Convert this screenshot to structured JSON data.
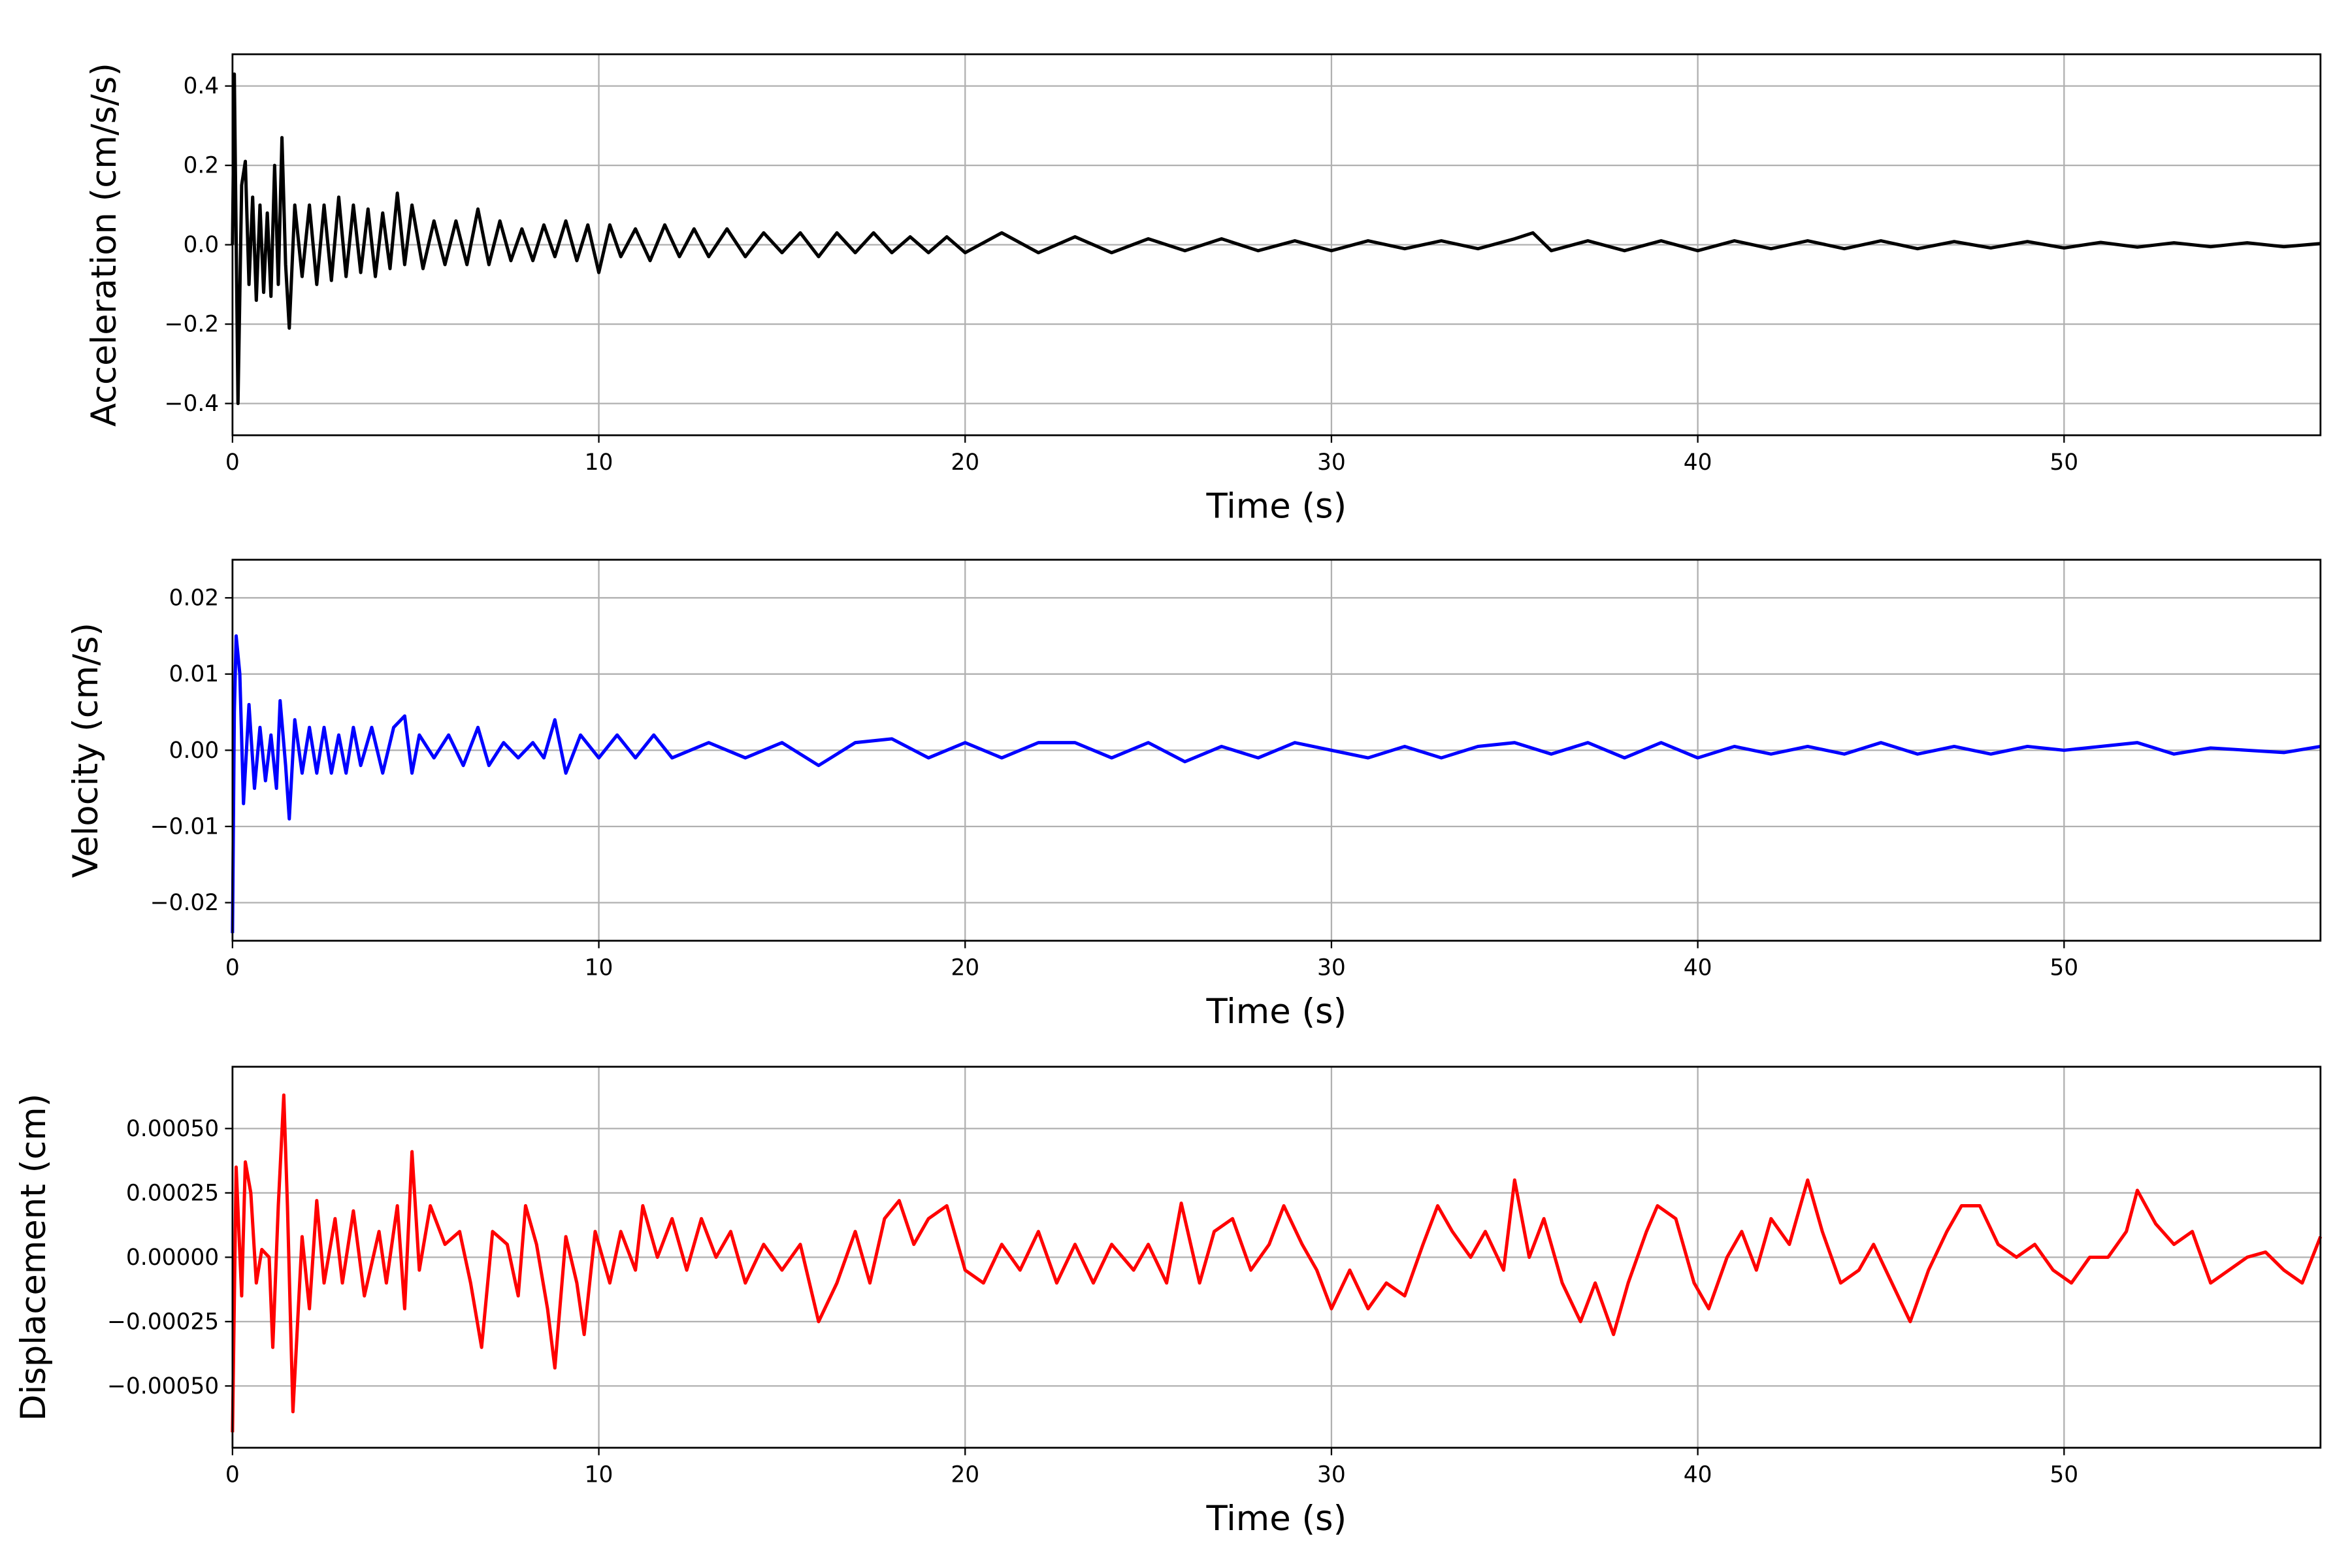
{
  "chart_data": [
    {
      "type": "line",
      "xlabel": "Time (s)",
      "ylabel": "Acceleration (cm/s/s)",
      "color": "#000000",
      "grid": true,
      "xlim": [
        0,
        57
      ],
      "xticks": [
        0,
        10,
        20,
        30,
        40,
        50
      ],
      "ylim": [
        -0.48,
        0.48
      ],
      "yticks": [
        {
          "value": -0.4,
          "label": "−0.4"
        },
        {
          "value": -0.2,
          "label": "−0.2"
        },
        {
          "value": 0,
          "label": "0.0"
        },
        0.2,
        0.4
      ],
      "x": [
        0,
        0.05,
        0.15,
        0.25,
        0.35,
        0.45,
        0.55,
        0.65,
        0.75,
        0.85,
        0.95,
        1.05,
        1.15,
        1.25,
        1.35,
        1.45,
        1.55,
        1.7,
        1.9,
        2.1,
        2.3,
        2.5,
        2.7,
        2.9,
        3.1,
        3.3,
        3.5,
        3.7,
        3.9,
        4.1,
        4.3,
        4.5,
        4.7,
        4.9,
        5.2,
        5.5,
        5.8,
        6.1,
        6.4,
        6.7,
        7,
        7.3,
        7.6,
        7.9,
        8.2,
        8.5,
        8.8,
        9.1,
        9.4,
        9.7,
        10,
        10.3,
        10.6,
        11,
        11.4,
        11.8,
        12.2,
        12.6,
        13,
        13.5,
        14,
        14.5,
        15,
        15.5,
        16,
        16.5,
        17,
        17.5,
        18,
        18.5,
        19,
        19.5,
        20,
        21,
        22,
        23,
        24,
        25,
        26,
        27,
        28,
        29,
        30,
        31,
        32,
        33,
        34,
        35,
        35.5,
        36,
        37,
        38,
        39,
        40,
        41,
        42,
        43,
        44,
        45,
        46,
        47,
        48,
        49,
        50,
        51,
        52,
        53,
        54,
        55,
        56,
        57
      ],
      "values": [
        0,
        0.43,
        -0.4,
        0.15,
        0.21,
        -0.1,
        0.12,
        -0.14,
        0.1,
        -0.12,
        0.08,
        -0.13,
        0.2,
        -0.1,
        0.27,
        -0.05,
        -0.21,
        0.1,
        -0.08,
        0.1,
        -0.1,
        0.1,
        -0.09,
        0.12,
        -0.08,
        0.1,
        -0.07,
        0.09,
        -0.08,
        0.08,
        -0.06,
        0.13,
        -0.05,
        0.1,
        -0.06,
        0.06,
        -0.05,
        0.06,
        -0.05,
        0.09,
        -0.05,
        0.06,
        -0.04,
        0.04,
        -0.04,
        0.05,
        -0.03,
        0.06,
        -0.04,
        0.05,
        -0.07,
        0.05,
        -0.03,
        0.04,
        -0.04,
        0.05,
        -0.03,
        0.04,
        -0.03,
        0.04,
        -0.03,
        0.03,
        -0.02,
        0.03,
        -0.03,
        0.03,
        -0.02,
        0.03,
        -0.02,
        0.02,
        -0.02,
        0.02,
        -0.02,
        0.03,
        -0.02,
        0.02,
        -0.02,
        0.015,
        -0.015,
        0.015,
        -0.015,
        0.01,
        -0.015,
        0.01,
        -0.01,
        0.01,
        -0.01,
        0.015,
        0.03,
        -0.015,
        0.01,
        -0.015,
        0.01,
        -0.015,
        0.01,
        -0.01,
        0.01,
        -0.01,
        0.01,
        -0.01,
        0.008,
        -0.008,
        0.008,
        -0.008,
        0.006,
        -0.006,
        0.005,
        -0.005,
        0.005,
        -0.005,
        0.003
      ]
    },
    {
      "type": "line",
      "xlabel": "Time (s)",
      "ylabel": "Velocity (cm/s)",
      "color": "#0000ff",
      "grid": true,
      "xlim": [
        0,
        57
      ],
      "xticks": [
        0,
        10,
        20,
        30,
        40,
        50
      ],
      "ylim": [
        -0.025,
        0.025
      ],
      "yticks": [
        {
          "value": -0.02,
          "label": "−0.02"
        },
        {
          "value": -0.01,
          "label": "−0.01"
        },
        {
          "value": 0,
          "label": "0.00"
        },
        0.01,
        0.02
      ],
      "x": [
        0,
        0.05,
        0.1,
        0.2,
        0.3,
        0.45,
        0.6,
        0.75,
        0.9,
        1.05,
        1.2,
        1.3,
        1.45,
        1.55,
        1.7,
        1.9,
        2.1,
        2.3,
        2.5,
        2.7,
        2.9,
        3.1,
        3.3,
        3.5,
        3.8,
        4.1,
        4.4,
        4.7,
        4.9,
        5.1,
        5.5,
        5.9,
        6.3,
        6.7,
        7,
        7.4,
        7.8,
        8.2,
        8.5,
        8.8,
        9.1,
        9.5,
        10,
        10.5,
        11,
        11.5,
        12,
        13,
        14,
        15,
        16,
        17,
        18,
        19,
        20,
        21,
        22,
        23,
        24,
        25,
        26,
        27,
        28,
        29,
        30,
        31,
        32,
        33,
        34,
        35,
        36,
        37,
        38,
        39,
        40,
        41,
        42,
        43,
        44,
        45,
        46,
        47,
        48,
        49,
        50,
        51,
        52,
        53,
        54,
        55,
        56,
        57
      ],
      "values": [
        -0.024,
        0.005,
        0.015,
        0.01,
        -0.007,
        0.006,
        -0.005,
        0.003,
        -0.004,
        0.002,
        -0.005,
        0.0065,
        -0.002,
        -0.009,
        0.004,
        -0.003,
        0.003,
        -0.003,
        0.003,
        -0.003,
        0.002,
        -0.003,
        0.003,
        -0.002,
        0.003,
        -0.003,
        0.003,
        0.0045,
        -0.003,
        0.002,
        -0.001,
        0.002,
        -0.002,
        0.003,
        -0.002,
        0.001,
        -0.001,
        0.001,
        -0.001,
        0.004,
        -0.003,
        0.002,
        -0.001,
        0.002,
        -0.001,
        0.002,
        -0.001,
        0.001,
        -0.001,
        0.001,
        -0.002,
        0.001,
        0.0015,
        -0.001,
        0.001,
        -0.001,
        0.001,
        0.001,
        -0.001,
        0.001,
        -0.0015,
        0.0005,
        -0.001,
        0.001,
        0,
        -0.001,
        0.0005,
        -0.001,
        0.0005,
        0.001,
        -0.0005,
        0.001,
        -0.001,
        0.001,
        -0.001,
        0.0005,
        -0.0005,
        0.0005,
        -0.0005,
        0.001,
        -0.0005,
        0.0005,
        -0.0005,
        0.0005,
        0,
        0.0005,
        0.001,
        -0.0005,
        0.0003,
        0,
        -0.0003,
        0.0005
      ]
    },
    {
      "type": "line",
      "xlabel": "Time (s)",
      "ylabel": "Displacement (cm)",
      "color": "#ff0000",
      "grid": true,
      "xlim": [
        0,
        57
      ],
      "xticks": [
        0,
        10,
        20,
        30,
        40,
        50
      ],
      "ylim": [
        -0.00074,
        0.00074
      ],
      "yticks": [
        {
          "value": -0.0005,
          "label": "−0.00050"
        },
        {
          "value": -0.00025,
          "label": "−0.00025"
        },
        {
          "value": 0,
          "label": "0.00000"
        },
        {
          "value": 0.00025,
          "label": "0.00025"
        },
        {
          "value": 0.0005,
          "label": "0.00050"
        }
      ],
      "x": [
        0,
        0.1,
        0.25,
        0.35,
        0.5,
        0.65,
        0.8,
        1,
        1.1,
        1.25,
        1.4,
        1.5,
        1.65,
        1.9,
        2.1,
        2.3,
        2.5,
        2.8,
        3,
        3.3,
        3.6,
        4,
        4.2,
        4.5,
        4.7,
        4.9,
        5.1,
        5.4,
        5.8,
        6.2,
        6.5,
        6.8,
        7.1,
        7.5,
        7.8,
        8,
        8.3,
        8.6,
        8.8,
        9.1,
        9.4,
        9.6,
        9.9,
        10.3,
        10.6,
        11,
        11.2,
        11.6,
        12,
        12.4,
        12.8,
        13.2,
        13.6,
        14,
        14.5,
        15,
        15.5,
        16,
        16.5,
        17,
        17.4,
        17.8,
        18.2,
        18.6,
        19,
        19.5,
        20,
        20.5,
        21,
        21.5,
        22,
        22.5,
        23,
        23.5,
        24,
        24.6,
        25,
        25.5,
        25.9,
        26.4,
        26.8,
        27.3,
        27.8,
        28.3,
        28.7,
        29.2,
        29.6,
        30,
        30.5,
        31,
        31.5,
        32,
        32.5,
        32.9,
        33.3,
        33.8,
        34.2,
        34.7,
        35,
        35.4,
        35.8,
        36.3,
        36.8,
        37.2,
        37.7,
        38.1,
        38.6,
        38.9,
        39.4,
        39.9,
        40.3,
        40.8,
        41.2,
        41.6,
        42,
        42.5,
        43,
        43.4,
        43.9,
        44.4,
        44.8,
        45.3,
        45.8,
        46.3,
        46.8,
        47.2,
        47.7,
        48.2,
        48.7,
        49.2,
        49.7,
        50.2,
        50.7,
        51.2,
        51.7,
        52,
        52.5,
        53,
        53.5,
        54,
        54.5,
        55,
        55.5,
        56,
        56.5,
        57
      ],
      "values": [
        -0.00068,
        0.00035,
        -0.00015,
        0.00037,
        0.00025,
        -0.0001,
        3e-05,
        0,
        -0.00035,
        0.0002,
        0.00063,
        0.0002,
        -0.0006,
        8e-05,
        -0.0002,
        0.00022,
        -0.0001,
        0.00015,
        -0.0001,
        0.00018,
        -0.00015,
        0.0001,
        -0.0001,
        0.0002,
        -0.0002,
        0.00041,
        -5e-05,
        0.0002,
        5e-05,
        0.0001,
        -0.0001,
        -0.00035,
        0.0001,
        5e-05,
        -0.00015,
        0.0002,
        5e-05,
        -0.0002,
        -0.00043,
        8e-05,
        -0.0001,
        -0.0003,
        0.0001,
        -0.0001,
        0.0001,
        -5e-05,
        0.0002,
        0,
        0.00015,
        -5e-05,
        0.00015,
        0,
        0.0001,
        -0.0001,
        5e-05,
        -5e-05,
        5e-05,
        -0.00025,
        -0.0001,
        0.0001,
        -0.0001,
        0.00015,
        0.00022,
        5e-05,
        0.00015,
        0.0002,
        -5e-05,
        -0.0001,
        5e-05,
        -5e-05,
        0.0001,
        -0.0001,
        5e-05,
        -0.0001,
        5e-05,
        -5e-05,
        5e-05,
        -0.0001,
        0.00021,
        -0.0001,
        0.0001,
        0.00015,
        -5e-05,
        5e-05,
        0.0002,
        5e-05,
        -5e-05,
        -0.0002,
        -5e-05,
        -0.0002,
        -0.0001,
        -0.00015,
        5e-05,
        0.0002,
        0.0001,
        0,
        0.0001,
        -5e-05,
        0.0003,
        0,
        0.00015,
        -0.0001,
        -0.00025,
        -0.0001,
        -0.0003,
        -0.0001,
        0.0001,
        0.0002,
        0.00015,
        -0.0001,
        -0.0002,
        0,
        0.0001,
        -5e-05,
        0.00015,
        5e-05,
        0.0003,
        0.0001,
        -0.0001,
        -5e-05,
        5e-05,
        -0.0001,
        -0.00025,
        -5e-05,
        0.0001,
        0.0002,
        0.0002,
        5e-05,
        0,
        5e-05,
        -5e-05,
        -0.0001,
        0,
        0,
        0.0001,
        0.00026,
        0.00013,
        5e-05,
        0.0001,
        -0.0001,
        -5e-05,
        0,
        2e-05,
        -5e-05,
        -0.0001,
        8e-05
      ]
    }
  ]
}
